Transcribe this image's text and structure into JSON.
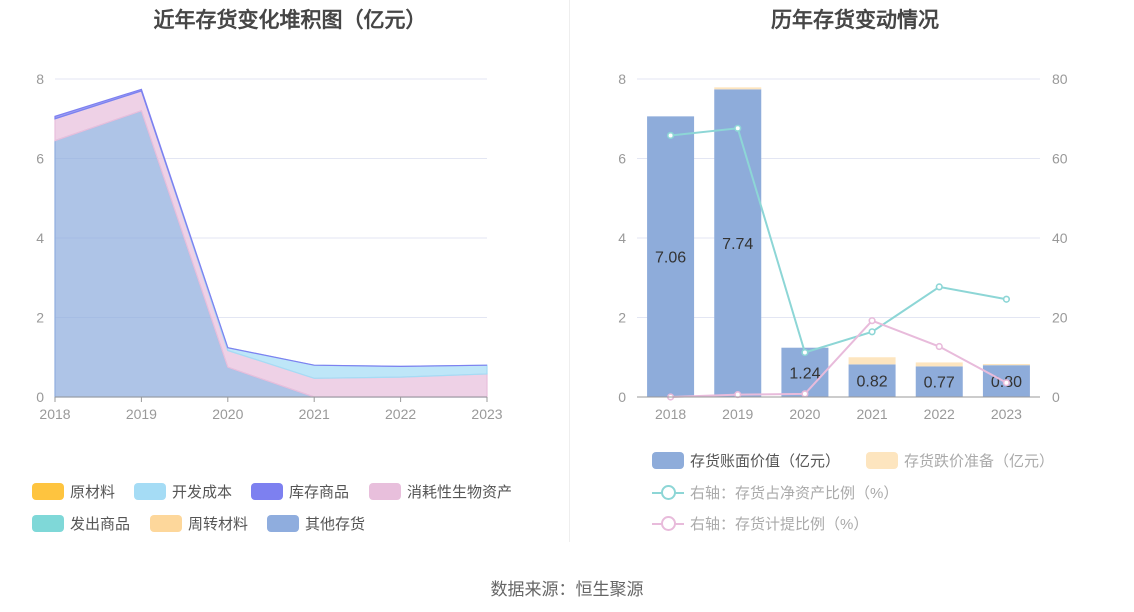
{
  "left_title": "近年存货变化堆积图（亿元）",
  "right_title": "历年存货变动情况",
  "source": "数据来源：恒生聚源",
  "chart_data": [
    {
      "type": "area",
      "stacked": true,
      "title": "近年存货变化堆积图（亿元）",
      "categories": [
        "2018",
        "2019",
        "2020",
        "2021",
        "2022",
        "2023"
      ],
      "ylim": [
        0,
        8
      ],
      "yticks": [
        0,
        2,
        4,
        6,
        8
      ],
      "grid": true,
      "legend_position": "bottom",
      "series": [
        {
          "name": "其他存货",
          "color": "#8fadde",
          "values": [
            6.45,
            7.2,
            0.75,
            0.0,
            0.0,
            0.0
          ]
        },
        {
          "name": "消耗性生物资产",
          "color": "#e8bfdc",
          "values": [
            0.55,
            0.5,
            0.42,
            0.47,
            0.5,
            0.58
          ]
        },
        {
          "name": "开发成本",
          "color": "#a5dcf5",
          "values": [
            0.0,
            0.0,
            0.07,
            0.33,
            0.27,
            0.22
          ]
        },
        {
          "name": "库存商品",
          "color": "#7d80f0",
          "values": [
            0.06,
            0.04,
            0.0,
            0.0,
            0.0,
            0.0
          ]
        },
        {
          "name": "原材料",
          "color": "#fec43f",
          "values": [
            0.0,
            0.0,
            0.0,
            0.0,
            0.0,
            0.0
          ]
        },
        {
          "name": "发出商品",
          "color": "#7fd8d8",
          "values": [
            0.0,
            0.0,
            0.0,
            0.0,
            0.0,
            0.0
          ]
        },
        {
          "name": "周转材料",
          "color": "#fdd79b",
          "values": [
            0.0,
            0.0,
            0.0,
            0.0,
            0.0,
            0.0
          ]
        }
      ],
      "legend_order": [
        "原材料",
        "开发成本",
        "库存商品",
        "消耗性生物资产",
        "发出商品",
        "周转材料",
        "其他存货"
      ]
    },
    {
      "type": "bar",
      "stacked": true,
      "title": "历年存货变动情况",
      "categories": [
        "2018",
        "2019",
        "2020",
        "2021",
        "2022",
        "2023"
      ],
      "ylim": [
        0,
        8
      ],
      "yticks": [
        0,
        2,
        4,
        6,
        8
      ],
      "y2lim": [
        0,
        80
      ],
      "y2ticks": [
        0,
        20,
        40,
        60,
        80
      ],
      "grid": true,
      "legend_position": "bottom",
      "bars": [
        {
          "name": "存货账面价值（亿元）",
          "color": "#8eacda",
          "values": [
            7.06,
            7.74,
            1.24,
            0.82,
            0.77,
            0.8
          ],
          "labels": [
            "7.06",
            "7.74",
            "1.24",
            "0.82",
            "0.77",
            "0.80"
          ]
        },
        {
          "name": "存货跌价准备（亿元）",
          "color": "#fde5bf",
          "values": [
            0.0,
            0.05,
            0.0,
            0.18,
            0.1,
            0.03
          ]
        }
      ],
      "lines": [
        {
          "name": "右轴：存货占净资产比例（%）",
          "color": "#8dd6d6",
          "axis": "right",
          "values": [
            65.8,
            67.6,
            11.2,
            16.4,
            27.7,
            24.6
          ]
        },
        {
          "name": "右轴：存货计提比例（%）",
          "color": "#e8bbdb",
          "axis": "right",
          "values": [
            0.0,
            0.6,
            0.8,
            19.2,
            12.7,
            3.6
          ]
        }
      ]
    }
  ]
}
